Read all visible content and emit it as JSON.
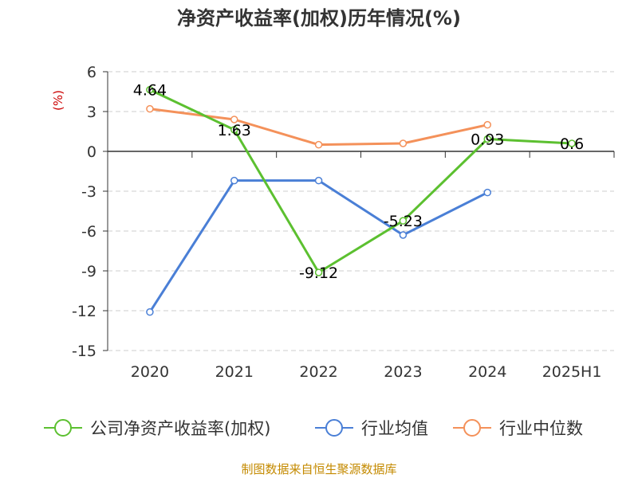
{
  "chart_data": {
    "type": "line",
    "title": "净资产收益率(加权)历年情况(%)",
    "ylabel": "(%)",
    "categories": [
      "2020",
      "2021",
      "2022",
      "2023",
      "2024",
      "2025H1"
    ],
    "ylim": [
      -15,
      6
    ],
    "yticks": [
      6,
      3,
      0,
      -3,
      -6,
      -9,
      -12,
      -15
    ],
    "ytick_labels": [
      "6",
      "3",
      "0",
      "-3",
      "-6",
      "-9",
      "-12",
      "-15"
    ],
    "grid": true,
    "legend_position": "bottom",
    "series": [
      {
        "name": "公司净资产收益率(加权)",
        "color": "#5cc030",
        "values": [
          4.64,
          1.63,
          -9.12,
          -5.23,
          0.93,
          0.6
        ],
        "labels": [
          "4.64",
          "1.63",
          "-9.12",
          "-5.23",
          "0.93",
          "0.6"
        ]
      },
      {
        "name": "行业均值",
        "color": "#4a7fd6",
        "values": [
          -12.1,
          -2.2,
          -2.2,
          -6.3,
          -3.1,
          null
        ]
      },
      {
        "name": "行业中位数",
        "color": "#f4915a",
        "values": [
          3.2,
          2.4,
          0.5,
          0.6,
          2.0,
          null
        ]
      }
    ]
  },
  "source_text": "制图数据来自恒生聚源数据库"
}
